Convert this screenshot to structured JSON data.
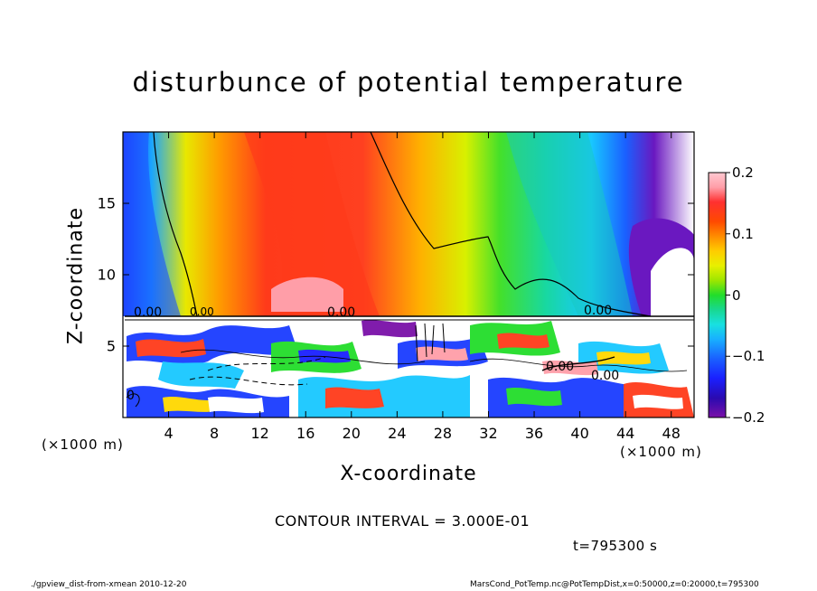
{
  "chart_data": {
    "type": "heatmap",
    "title": "disturbunce of potential temperature",
    "xlabel": "X-coordinate",
    "ylabel": "Z-coordinate",
    "x_unit": "(×1000 m)",
    "y_unit": "(×1000 m)",
    "x_ticks": [
      "4",
      "8",
      "12",
      "16",
      "20",
      "24",
      "28",
      "32",
      "36",
      "40",
      "44",
      "48"
    ],
    "y_ticks": [
      "5",
      "10",
      "15"
    ],
    "xlim": [
      0,
      50
    ],
    "ylim": [
      0,
      20
    ],
    "colorbar": {
      "ticks": [
        "0.2",
        "0.1",
        "0",
        "−0.1",
        "−0.2"
      ],
      "range": [
        -0.2,
        0.2
      ]
    },
    "contour_labels": [
      "0.00",
      "0.00",
      "0.00",
      "0.00",
      "0.00",
      "0.00",
      "0"
    ],
    "contour_interval": "CONTOUR INTERVAL = 3.000E-01",
    "annotations": {
      "time": "t=795300 s",
      "footer_left": "./gpview_dist-from-xmean   2010-12-20",
      "footer_right": "MarsCond_PotTemp.nc@PotTempDist,x=0:50000,z=0:20000,t=795300"
    },
    "colors": {
      "max": "#ff9ea8",
      "high": "#ff3a1a",
      "mid_high": "#ffd700",
      "zero": "#22dd2a",
      "mid_low": "#18c8ff",
      "low": "#1a3cff",
      "min": "#7a10a8"
    }
  }
}
